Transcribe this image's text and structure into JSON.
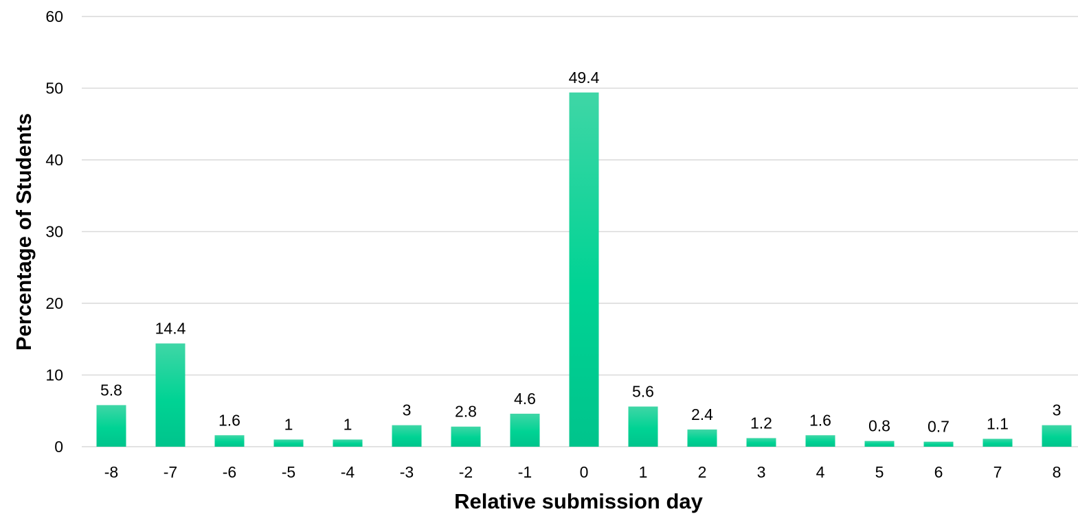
{
  "chart_data": {
    "type": "bar",
    "title": "",
    "xlabel": "Relative submission day",
    "ylabel": "Percentage of Students",
    "categories": [
      "-8",
      "-7",
      "-6",
      "-5",
      "-4",
      "-3",
      "-2",
      "-1",
      "0",
      "1",
      "2",
      "3",
      "4",
      "5",
      "6",
      "7",
      "8"
    ],
    "values": [
      5.8,
      14.4,
      1.6,
      1,
      1,
      3,
      2.8,
      4.6,
      49.4,
      5.6,
      2.4,
      1.2,
      1.6,
      0.8,
      0.7,
      1.1,
      3
    ],
    "data_labels": [
      "5.8",
      "14.4",
      "1.6",
      "1",
      "1",
      "3",
      "2.8",
      "4.6",
      "49.4",
      "5.6",
      "2.4",
      "1.2",
      "1.6",
      "0.8",
      "0.7",
      "1.1",
      "3"
    ],
    "ylim": [
      0,
      60
    ],
    "yticks": [
      "0",
      "10",
      "20",
      "30",
      "40",
      "50",
      "60"
    ],
    "grid": true,
    "legend": "none",
    "bar_color_top": "#3fd6a6",
    "bar_color_bottom": "#00c48c",
    "grid_color": "#d9d9d9"
  }
}
